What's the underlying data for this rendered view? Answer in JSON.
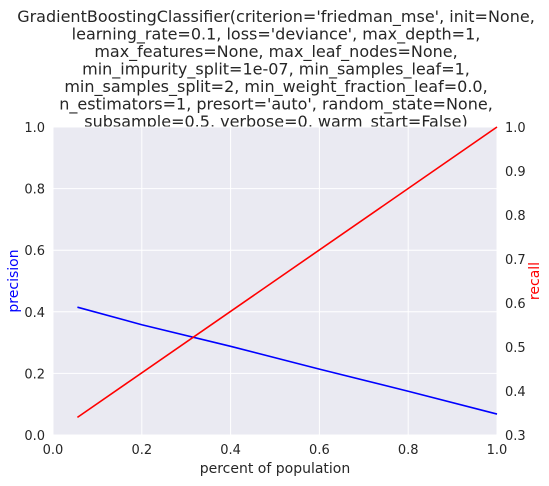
{
  "chart_data": {
    "type": "line",
    "title_lines": [
      "GradientBoostingClassifier(criterion='friedman_mse', init=None,",
      "learning_rate=0.1, loss='deviance', max_depth=1,",
      "max_features=None, max_leaf_nodes=None,",
      "min_impurity_split=1e-07, min_samples_leaf=1,",
      "min_samples_split=2, min_weight_fraction_leaf=0.0,",
      "n_estimators=1, presort='auto', random_state=None,",
      "subsample=0.5, verbose=0, warm_start=False)"
    ],
    "xlabel": "percent of population",
    "ylabel_left": "precision",
    "ylabel_right": "recall",
    "xlim": [
      0.0,
      1.0
    ],
    "ylim_left": [
      0.0,
      1.0
    ],
    "ylim_right": [
      0.3,
      1.0
    ],
    "x_ticks": [
      "0.0",
      "0.2",
      "0.4",
      "0.6",
      "0.8",
      "1.0"
    ],
    "y_left_ticks": [
      "0.0",
      "0.2",
      "0.4",
      "0.6",
      "0.8",
      "1.0"
    ],
    "y_right_ticks": [
      "0.3",
      "0.4",
      "0.5",
      "0.6",
      "0.7",
      "0.8",
      "0.9",
      "1.0"
    ],
    "grid": true,
    "colors": {
      "plot_bg": "#EAEAF2",
      "grid": "#FFFFFF",
      "precision": "#0000FF",
      "recall": "#FF0000",
      "text": "#262626"
    },
    "series": [
      {
        "name": "precision",
        "axis": "left",
        "color": "#0000FF",
        "x": [
          0.055,
          0.2,
          0.4,
          0.6,
          0.8,
          1.0
        ],
        "y": [
          0.415,
          0.358,
          0.288,
          0.214,
          0.142,
          0.068
        ]
      },
      {
        "name": "recall",
        "axis": "right",
        "color": "#FF0000",
        "x": [
          0.055,
          1.0
        ],
        "y": [
          0.34,
          1.0
        ]
      }
    ]
  }
}
